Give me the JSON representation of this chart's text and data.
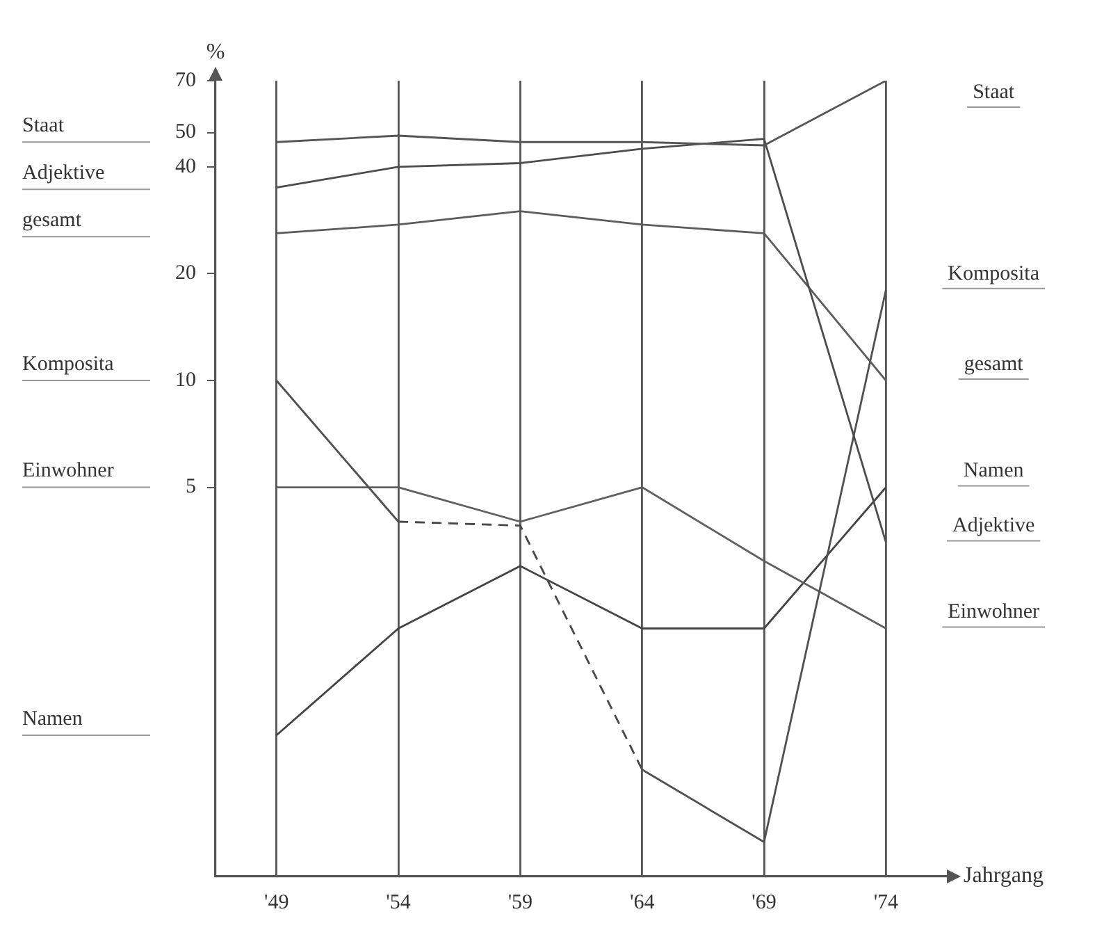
{
  "chart_data": {
    "type": "line",
    "xlabel": "Jahrgang",
    "ylabel": "%",
    "categories": [
      "'49",
      "'54",
      "'59",
      "'64",
      "'69",
      "'74"
    ],
    "series": [
      {
        "name": "Staat",
        "color": "#555555",
        "values": [
          47,
          49,
          47,
          47,
          46,
          70
        ]
      },
      {
        "name": "Adjektive",
        "color": "#4d4d4d",
        "values": [
          35,
          40,
          41,
          45,
          48,
          3.5
        ]
      },
      {
        "name": "gesamt",
        "color": "#5c5c5c",
        "values": [
          26,
          27.5,
          30,
          27.5,
          26,
          10
        ]
      },
      {
        "name": "Komposita",
        "color": "#505050",
        "values": [
          10,
          4,
          null,
          0.8,
          0.5,
          18
        ]
      },
      {
        "color": "#484848",
        "line_style": "dashed",
        "values": [
          null,
          4,
          3.9,
          0.8,
          null,
          null
        ]
      },
      {
        "name": "Einwohner",
        "color": "#606060",
        "values": [
          5,
          5,
          4,
          5,
          3.1,
          2
        ]
      },
      {
        "name": "Namen",
        "color": "#444444",
        "values": [
          1,
          2,
          3,
          2,
          2,
          5
        ]
      }
    ],
    "ylim": [
      0.4,
      70
    ],
    "yticks": [
      5,
      10,
      20,
      40,
      50,
      70
    ],
    "log": "y",
    "grid": "x",
    "legend": false,
    "marker": "none",
    "line_style": "solid"
  }
}
